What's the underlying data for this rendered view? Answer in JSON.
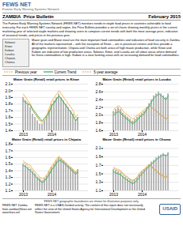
{
  "title": "ZAMBIA  Price Bulletin",
  "subtitle": "February 2015",
  "legend": "top",
  "annotations": [
    "FEWS NET",
    "Famine Early Warning Systems Network",
    "The Famine Early Warning Systems Network (FEWS NET) monitors trends in staple food prices in countries vulnerable to food insecurity. For each FEWS NET country and region, the Price Bulletin provides a set of charts showing monthly prices in the current marketing year of selected staple markets and showing users to compare current trends with both the most average price, indicative of seasonal trends, and prices in the previous year.",
    "Solwezi",
    "Kitwe",
    "Kabwe",
    "Lusaka",
    "Chipata",
    "Choma",
    "Maize grain and Maize meal are the most important food commodities and indicators of food security in Zambia. All of the markets represented -- with the exception of Kitwe -- are in provincial centers and thus provide a geographic representation. Chipata and Choma are both areas of high maize production, while Kitwe and Kabwe are indicative of low production areas. Solwezi, Kitwe, and Lusaka are all urban areas where demand for these commodities is high. Kabwe is a near farming areas with an increasing demand for food commodities.",
    "FEWS NET geographic boundaries are shown for illustrative purposes only.",
    "FEWS NET Zambia\nfews.zambia@fews.net\nwww.fews.net",
    "FEWS NET is a USAID-funded activity. The content of this report does not necessarily\nreflect the view of the United States Agency for International Development or the United\nStates Government.",
    "USAID"
  ],
  "chart_data": [
    {
      "type": "bar",
      "title": "Maize Grain (Retail) retail prices in Kitwe",
      "categories": [
        "2013",
        null,
        null,
        null,
        null,
        null,
        null,
        null,
        null,
        null,
        null,
        null,
        "2014",
        null,
        null,
        null,
        null,
        null,
        null,
        null,
        null,
        null,
        null,
        null
      ],
      "series": [
        {
          "type": "bar",
          "color": "#b8b8b8",
          "values": [
            1.9,
            1.85,
            1.8,
            1.75,
            1.65,
            1.6,
            1.55,
            1.5,
            1.5,
            1.55,
            1.6,
            1.7,
            1.8,
            1.85,
            1.9,
            1.95,
            1.9,
            1.85,
            1.8,
            1.75,
            1.7,
            1.65,
            1.55,
            1.6
          ]
        },
        {
          "name": "Previous year",
          "type": "line",
          "color": "#f5a623",
          "line_style": "dashed",
          "values": [
            1.95,
            1.9,
            1.85,
            1.8,
            1.7,
            1.65,
            1.6,
            1.55,
            1.55,
            1.6,
            1.65,
            1.75,
            1.85,
            1.9,
            1.95,
            2.0,
            1.95,
            1.9,
            1.85,
            1.8,
            1.75,
            1.7,
            1.6,
            1.65
          ]
        },
        {
          "name": "Current Trend",
          "type": "line",
          "color": "#27ae60",
          "line_style": "solid",
          "values": [
            1.85,
            1.82,
            1.8,
            1.78,
            1.72,
            1.68,
            1.63,
            1.58,
            1.55,
            1.58,
            1.63,
            1.7,
            1.78,
            1.82,
            1.88,
            1.92,
            1.88,
            1.82,
            1.78,
            1.72,
            1.68,
            1.62,
            1.55,
            1.6
          ]
        },
        {
          "name": "5-year average",
          "type": "line",
          "color": "#c8a96e",
          "line_style": "dashed",
          "values": [
            1.88,
            1.85,
            1.82,
            1.78,
            1.7,
            1.65,
            1.6,
            1.55,
            1.52,
            1.55,
            1.6,
            1.68,
            1.78,
            1.82,
            1.88,
            1.92,
            1.88,
            1.82,
            1.78,
            1.72,
            1.68,
            1.62,
            1.55,
            1.58
          ]
        }
      ],
      "ylim": [
        1.4,
        2.1
      ],
      "yticks": [
        1.4,
        1.5,
        1.6,
        1.7,
        1.8,
        1.9,
        {
          "value": 2,
          "label": "2.0"
        },
        2.1
      ],
      "grid": true
    },
    {
      "type": "bar",
      "title": "Maize Grain (Retail) retail prices in Lusaka",
      "categories": [
        "2013",
        null,
        null,
        null,
        null,
        null,
        null,
        null,
        null,
        null,
        null,
        null,
        "2014",
        null,
        null,
        null,
        null,
        null,
        null,
        null,
        null,
        null,
        null,
        null
      ],
      "series": [
        {
          "type": "bar",
          "color": "#b8b8b8",
          "values": [
            2.1,
            2.15,
            2.2,
            2.15,
            2.05,
            2.0,
            1.95,
            1.9,
            1.85,
            1.9,
            1.95,
            2.0,
            2.05,
            2.1,
            2.2,
            2.3,
            2.4,
            2.5,
            2.55,
            2.6,
            2.55,
            2.5,
            2.45,
            2.55
          ]
        },
        {
          "name": "Previous year",
          "type": "line",
          "color": "#f5a623",
          "line_style": "dashed",
          "values": [
            2.15,
            2.2,
            2.25,
            2.2,
            2.1,
            2.05,
            2.0,
            1.95,
            1.9,
            1.95,
            2.0,
            2.05,
            2.1,
            2.15,
            2.2,
            2.25,
            2.2,
            2.15,
            2.1,
            2.05,
            2.0,
            1.95,
            1.9,
            1.95
          ]
        },
        {
          "name": "Current Trend",
          "type": "line",
          "color": "#27ae60",
          "line_style": "solid",
          "values": [
            2.0,
            2.05,
            2.1,
            2.05,
            1.98,
            1.92,
            1.88,
            1.82,
            1.78,
            1.82,
            1.88,
            1.95,
            2.0,
            2.05,
            2.15,
            2.25,
            2.35,
            2.45,
            2.5,
            2.55,
            2.5,
            2.45,
            2.4,
            2.5
          ]
        },
        {
          "name": "5-year average",
          "type": "line",
          "color": "#c8a96e",
          "line_style": "dashed",
          "values": [
            2.05,
            2.1,
            2.15,
            2.1,
            2.02,
            1.96,
            1.92,
            1.86,
            1.82,
            1.86,
            1.92,
            1.98,
            2.05,
            2.1,
            2.18,
            2.25,
            2.2,
            2.15,
            2.1,
            2.05,
            2.0,
            1.95,
            1.9,
            1.95
          ]
        }
      ],
      "ylim": [
        1.6,
        2.8
      ],
      "yticks": [
        1.6,
        1.8,
        {
          "value": 2,
          "label": "2.0"
        },
        2.2,
        2.4,
        2.6,
        2.8
      ],
      "grid": true
    },
    {
      "type": "bar",
      "title": "Maize Grain (Retail) retail prices in Chipata",
      "categories": [
        "2013",
        null,
        null,
        null,
        null,
        null,
        null,
        null,
        null,
        null,
        null,
        null,
        "2014",
        null,
        null,
        null,
        null,
        null,
        null,
        null,
        null,
        null,
        null,
        null
      ],
      "series": [
        {
          "type": "bar",
          "color": "#b8b8b8",
          "values": [
            1.5,
            1.48,
            1.45,
            1.42,
            1.38,
            1.35,
            1.3,
            1.28,
            1.25,
            1.28,
            1.32,
            1.38,
            1.45,
            1.5,
            1.55,
            1.6,
            1.58,
            1.55,
            1.52,
            1.48,
            1.45,
            1.42,
            1.38,
            1.42
          ]
        },
        {
          "name": "Previous year",
          "type": "line",
          "color": "#f5a623",
          "line_style": "dashed",
          "values": [
            1.55,
            1.52,
            1.5,
            1.48,
            1.42,
            1.38,
            1.35,
            1.3,
            1.28,
            1.3,
            1.35,
            1.42,
            1.48,
            1.52,
            1.58,
            1.62,
            1.58,
            1.55,
            1.52,
            1.48,
            1.45,
            1.42,
            1.38,
            1.42
          ]
        },
        {
          "name": "Current Trend",
          "type": "line",
          "color": "#27ae60",
          "line_style": "solid",
          "values": [
            1.48,
            1.46,
            1.43,
            1.4,
            1.36,
            1.32,
            1.28,
            1.25,
            1.22,
            1.25,
            1.3,
            1.35,
            1.42,
            1.46,
            1.52,
            1.56,
            1.54,
            1.52,
            1.48,
            1.45,
            1.42,
            1.38,
            1.35,
            1.38
          ]
        },
        {
          "name": "5-year average",
          "type": "line",
          "color": "#c8a96e",
          "line_style": "dashed",
          "values": [
            1.52,
            1.5,
            1.47,
            1.44,
            1.39,
            1.35,
            1.31,
            1.27,
            1.24,
            1.27,
            1.32,
            1.38,
            1.45,
            1.49,
            1.55,
            1.59,
            1.56,
            1.53,
            1.5,
            1.47,
            1.44,
            1.4,
            1.37,
            1.4
          ]
        }
      ],
      "ylim": [
        1.1,
        1.8
      ],
      "yticks": [
        1.1,
        1.2,
        1.3,
        1.4,
        1.5,
        1.6,
        1.7,
        1.8
      ],
      "grid": true
    },
    {
      "type": "bar",
      "title": "Maize Grain (Retail) retail prices in Choma",
      "categories": [
        "2013",
        null,
        null,
        null,
        null,
        null,
        null,
        null,
        null,
        null,
        null,
        null,
        "2014",
        null,
        null,
        null,
        null,
        null,
        null,
        null,
        null,
        null,
        null,
        null
      ],
      "series": [
        {
          "type": "bar",
          "color": "#b8b8b8",
          "values": [
            1.6,
            1.58,
            1.55,
            1.52,
            1.45,
            1.42,
            1.38,
            1.35,
            1.32,
            1.35,
            1.4,
            1.48,
            1.55,
            1.6,
            1.65,
            1.72,
            1.78,
            1.82,
            1.88,
            1.92,
            1.95,
            1.98,
            1.95,
            2.0
          ]
        },
        {
          "name": "Previous year",
          "type": "line",
          "color": "#f5a623",
          "line_style": "dashed",
          "values": [
            1.65,
            1.62,
            1.6,
            1.58,
            1.5,
            1.46,
            1.42,
            1.38,
            1.35,
            1.38,
            1.44,
            1.52,
            1.58,
            1.62,
            1.68,
            1.72,
            1.68,
            1.62,
            1.58,
            1.52,
            1.48,
            1.45,
            1.42,
            1.48
          ]
        },
        {
          "name": "Current Trend",
          "type": "line",
          "color": "#27ae60",
          "line_style": "solid",
          "values": [
            1.55,
            1.52,
            1.5,
            1.48,
            1.42,
            1.38,
            1.34,
            1.3,
            1.27,
            1.3,
            1.36,
            1.44,
            1.51,
            1.56,
            1.62,
            1.68,
            1.74,
            1.78,
            1.84,
            1.88,
            1.92,
            1.95,
            1.92,
            1.97
          ]
        },
        {
          "name": "5-year average",
          "type": "line",
          "color": "#c8a96e",
          "line_style": "dashed",
          "values": [
            1.62,
            1.59,
            1.57,
            1.55,
            1.48,
            1.44,
            1.4,
            1.36,
            1.33,
            1.36,
            1.42,
            1.5,
            1.56,
            1.6,
            1.66,
            1.7,
            1.66,
            1.6,
            1.56,
            1.5,
            1.46,
            1.43,
            1.4,
            1.46
          ]
        }
      ],
      "ylim": [
        1.1,
        2.2
      ],
      "yticks": [
        1.1,
        1.3,
        1.5,
        1.7,
        1.9,
        2.1
      ],
      "grid": true
    }
  ]
}
